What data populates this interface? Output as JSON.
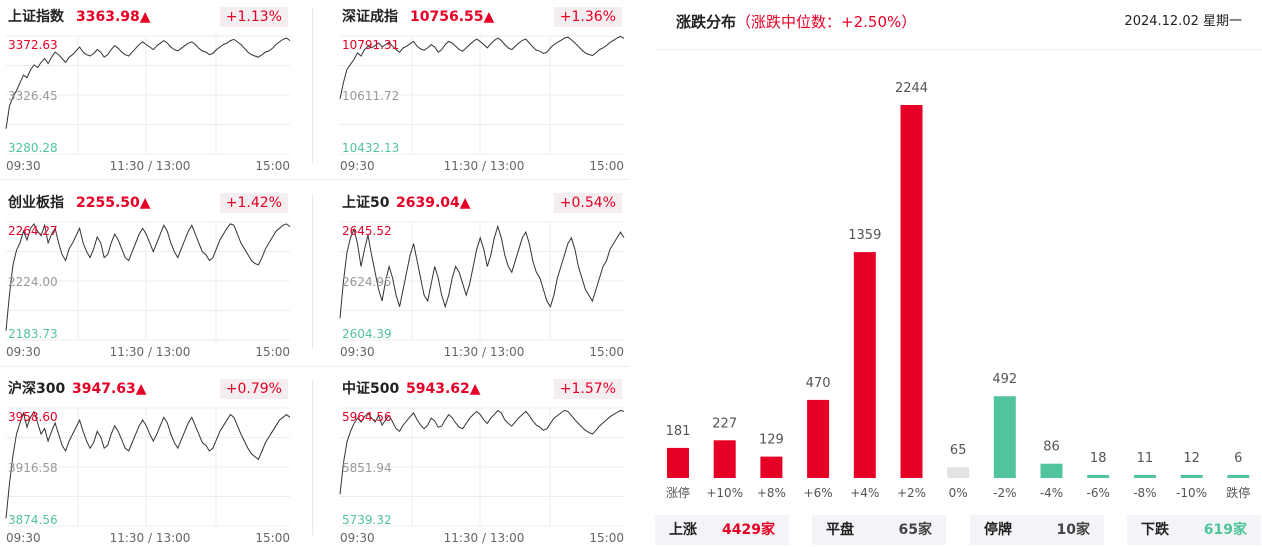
{
  "colors": {
    "up": "#e60026",
    "down": "#52c49b",
    "flat": "#e2e2e2",
    "line": "#333333",
    "grid": "#ececec"
  },
  "indices": [
    {
      "name": "上证指数",
      "price": "3363.98",
      "arrow": "▲",
      "pct": "+1.13%",
      "high": "3372.63",
      "mid": "3326.45",
      "low": "3280.28",
      "times": [
        "09:30",
        "11:30 / 13:00",
        "15:00"
      ],
      "series": [
        3300,
        3318,
        3325,
        3330,
        3336,
        3342,
        3340,
        3346,
        3350,
        3348,
        3352,
        3355,
        3351,
        3356,
        3360,
        3358,
        3355,
        3352,
        3356,
        3358,
        3361,
        3364,
        3360,
        3358,
        3357,
        3359,
        3362,
        3360,
        3356,
        3358,
        3362,
        3365,
        3363,
        3360,
        3358,
        3357,
        3360,
        3363,
        3366,
        3368,
        3366,
        3364,
        3362,
        3365,
        3367,
        3369,
        3367,
        3364,
        3362,
        3361,
        3363,
        3365,
        3367,
        3368,
        3366,
        3363,
        3361,
        3360,
        3358,
        3359,
        3362,
        3364,
        3366,
        3367,
        3369,
        3370,
        3368,
        3366,
        3363,
        3360,
        3358,
        3357,
        3356,
        3358,
        3360,
        3361,
        3363,
        3366,
        3368,
        3370,
        3371,
        3369
      ]
    },
    {
      "name": "深证成指",
      "price": "10756.55",
      "arrow": "▲",
      "pct": "+1.36%",
      "high": "10791.31",
      "mid": "10611.72",
      "low": "10432.13",
      "times": [
        "09:30",
        "11:30 / 13:00",
        "15:00"
      ],
      "series": [
        10600,
        10650,
        10690,
        10705,
        10720,
        10740,
        10730,
        10750,
        10760,
        10755,
        10762,
        10770,
        10758,
        10765,
        10772,
        10760,
        10750,
        10742,
        10755,
        10760,
        10768,
        10775,
        10760,
        10752,
        10748,
        10755,
        10765,
        10758,
        10742,
        10750,
        10765,
        10775,
        10770,
        10760,
        10750,
        10745,
        10755,
        10765,
        10775,
        10782,
        10775,
        10765,
        10755,
        10768,
        10778,
        10785,
        10778,
        10765,
        10755,
        10750,
        10760,
        10770,
        10778,
        10782,
        10770,
        10758,
        10748,
        10745,
        10738,
        10742,
        10755,
        10765,
        10772,
        10778,
        10785,
        10788,
        10780,
        10770,
        10760,
        10748,
        10740,
        10735,
        10732,
        10740,
        10750,
        10755,
        10762,
        10772,
        10778,
        10785,
        10790,
        10784
      ]
    },
    {
      "name": "创业板指",
      "price": "2255.50",
      "arrow": "▲",
      "pct": "+1.42%",
      "high": "2264.27",
      "mid": "2224.00",
      "low": "2183.73",
      "times": [
        "09:30",
        "11:30 / 13:00",
        "15:00"
      ],
      "series": [
        2190,
        2215,
        2235,
        2245,
        2250,
        2258,
        2252,
        2260,
        2263,
        2258,
        2255,
        2262,
        2250,
        2256,
        2260,
        2250,
        2242,
        2238,
        2246,
        2250,
        2255,
        2260,
        2250,
        2244,
        2240,
        2246,
        2254,
        2250,
        2240,
        2242,
        2250,
        2256,
        2252,
        2246,
        2240,
        2238,
        2244,
        2250,
        2256,
        2260,
        2256,
        2250,
        2244,
        2250,
        2256,
        2262,
        2258,
        2250,
        2244,
        2240,
        2246,
        2252,
        2258,
        2262,
        2256,
        2250,
        2244,
        2242,
        2238,
        2240,
        2246,
        2252,
        2256,
        2260,
        2263,
        2262,
        2256,
        2250,
        2246,
        2242,
        2238,
        2236,
        2235,
        2240,
        2246,
        2250,
        2254,
        2258,
        2260,
        2262,
        2263,
        2261
      ]
    },
    {
      "name": "上证50",
      "price": "2639.04",
      "arrow": "▲",
      "pct": "+0.54%",
      "high": "2645.52",
      "mid": "2624.95",
      "low": "2604.39",
      "times": [
        "09:30",
        "11:30 / 13:00",
        "15:00"
      ],
      "series": [
        2612,
        2625,
        2635,
        2640,
        2643,
        2638,
        2630,
        2636,
        2641,
        2634,
        2628,
        2622,
        2618,
        2625,
        2630,
        2626,
        2620,
        2616,
        2622,
        2628,
        2634,
        2638,
        2632,
        2626,
        2620,
        2618,
        2624,
        2630,
        2626,
        2620,
        2616,
        2620,
        2626,
        2630,
        2628,
        2624,
        2620,
        2624,
        2630,
        2636,
        2640,
        2636,
        2630,
        2634,
        2640,
        2644,
        2640,
        2634,
        2630,
        2628,
        2632,
        2636,
        2640,
        2642,
        2638,
        2632,
        2628,
        2626,
        2622,
        2618,
        2616,
        2620,
        2626,
        2630,
        2634,
        2638,
        2640,
        2636,
        2630,
        2626,
        2622,
        2620,
        2618,
        2622,
        2626,
        2630,
        2632,
        2636,
        2638,
        2640,
        2642,
        2640
      ]
    },
    {
      "name": "沪深300",
      "price": "3947.63",
      "arrow": "▲",
      "pct": "+0.79%",
      "high": "3958.60",
      "mid": "3916.58",
      "low": "3874.56",
      "times": [
        "09:30",
        "11:30 / 13:00",
        "15:00"
      ],
      "series": [
        3880,
        3905,
        3925,
        3940,
        3948,
        3955,
        3945,
        3952,
        3956,
        3948,
        3940,
        3944,
        3935,
        3942,
        3948,
        3940,
        3932,
        3928,
        3935,
        3940,
        3945,
        3950,
        3942,
        3935,
        3930,
        3934,
        3942,
        3938,
        3930,
        3932,
        3940,
        3946,
        3942,
        3936,
        3930,
        3928,
        3934,
        3940,
        3946,
        3950,
        3946,
        3940,
        3935,
        3940,
        3946,
        3952,
        3948,
        3940,
        3934,
        3930,
        3936,
        3942,
        3948,
        3952,
        3946,
        3940,
        3934,
        3932,
        3928,
        3930,
        3936,
        3942,
        3946,
        3950,
        3954,
        3952,
        3946,
        3940,
        3935,
        3930,
        3926,
        3924,
        3922,
        3928,
        3934,
        3938,
        3942,
        3946,
        3950,
        3952,
        3954,
        3952
      ]
    },
    {
      "name": "中证500",
      "price": "5943.62",
      "arrow": "▲",
      "pct": "+1.57%",
      "high": "5964.56",
      "mid": "5851.94",
      "low": "5739.32",
      "times": [
        "09:30",
        "11:30 / 13:00",
        "15:00"
      ],
      "series": [
        5800,
        5860,
        5900,
        5920,
        5935,
        5945,
        5938,
        5948,
        5955,
        5945,
        5938,
        5950,
        5932,
        5942,
        5950,
        5938,
        5925,
        5920,
        5932,
        5940,
        5948,
        5955,
        5942,
        5932,
        5925,
        5932,
        5945,
        5940,
        5928,
        5930,
        5942,
        5952,
        5946,
        5936,
        5928,
        5925,
        5935,
        5945,
        5952,
        5958,
        5952,
        5942,
        5935,
        5945,
        5952,
        5960,
        5955,
        5942,
        5935,
        5930,
        5938,
        5946,
        5952,
        5958,
        5950,
        5940,
        5932,
        5928,
        5922,
        5925,
        5935,
        5945,
        5950,
        5955,
        5960,
        5958,
        5950,
        5942,
        5935,
        5928,
        5922,
        5918,
        5915,
        5922,
        5930,
        5936,
        5942,
        5948,
        5952,
        5956,
        5960,
        5958
      ]
    }
  ],
  "distribution": {
    "title": "涨跌分布",
    "median": "（涨跌中位数：+2.50%）",
    "date": "2024.12.02 星期一",
    "chart_data": {
      "type": "bar",
      "categories": [
        "涨停",
        "+10%",
        "+8%",
        "+6%",
        "+4%",
        "+2%",
        "0%",
        "-2%",
        "-4%",
        "-6%",
        "-8%",
        "-10%",
        "跌停"
      ],
      "values": [
        181,
        227,
        129,
        470,
        1359,
        2244,
        65,
        492,
        86,
        18,
        11,
        12,
        6
      ],
      "tone": [
        "up",
        "up",
        "up",
        "up",
        "up",
        "up",
        "flat",
        "down",
        "down",
        "down",
        "down",
        "down",
        "down"
      ],
      "ylim": [
        0,
        2244
      ]
    },
    "summary": [
      {
        "label": "上涨",
        "value": "4429家",
        "tone": "up"
      },
      {
        "label": "平盘",
        "value": "65家",
        "tone": "neutral"
      },
      {
        "label": "停牌",
        "value": "10家",
        "tone": "neutral"
      },
      {
        "label": "下跌",
        "value": "619家",
        "tone": "down"
      }
    ]
  }
}
